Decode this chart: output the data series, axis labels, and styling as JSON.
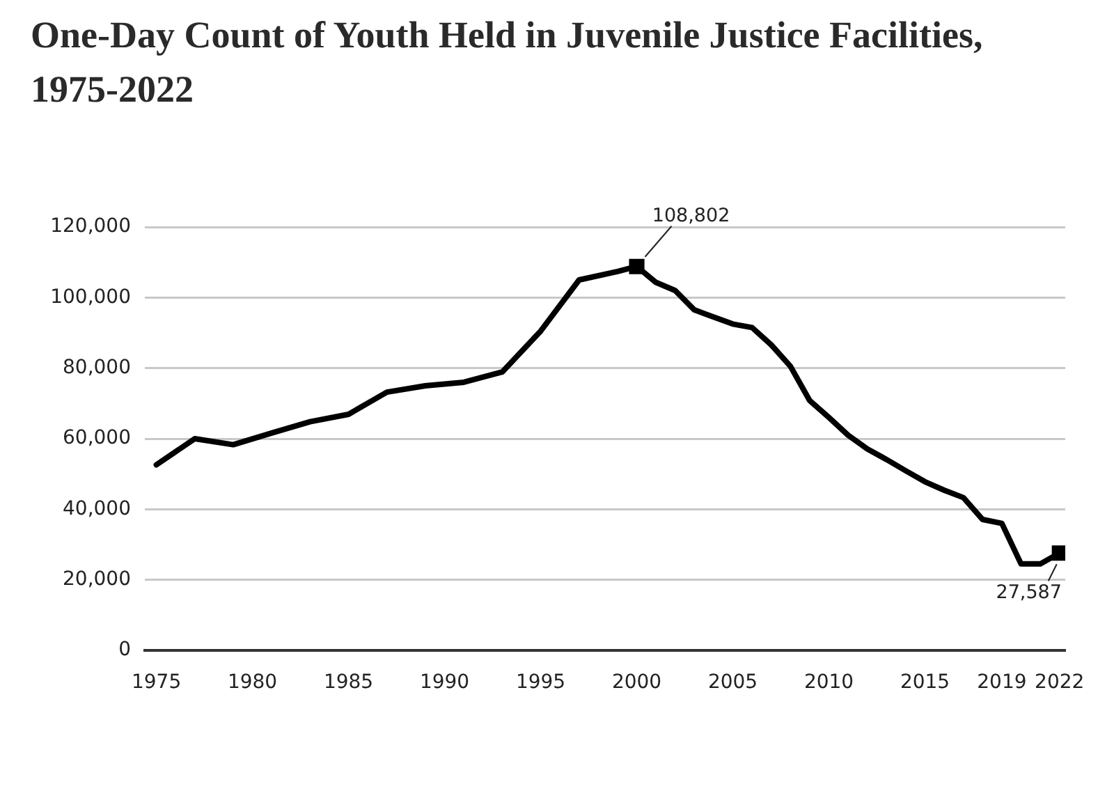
{
  "chart_data": {
    "type": "line",
    "title": "One-Day Count of Youth Held in Juvenile Justice Facilities, 1975-2022",
    "x": [
      1975,
      1977,
      1979,
      1981,
      1983,
      1985,
      1987,
      1989,
      1991,
      1993,
      1995,
      1997,
      1999,
      2000,
      2001,
      2002,
      2003,
      2004,
      2005,
      2006,
      2007,
      2008,
      2009,
      2010,
      2011,
      2012,
      2013,
      2014,
      2015,
      2016,
      2017,
      2018,
      2019,
      2020,
      2021,
      2022
    ],
    "series": [
      {
        "color": "#000000",
        "values": [
          52600,
          60000,
          58300,
          61600,
          64800,
          66900,
          73200,
          75000,
          76000,
          78900,
          90500,
          105000,
          107400,
          108802,
          104300,
          102000,
          96500,
          94500,
          92500,
          91500,
          86600,
          80500,
          70800,
          66000,
          61000,
          57100,
          54100,
          50900,
          47800,
          45400,
          43300,
          37100,
          36000,
          24500,
          24500,
          27587
        ],
        "value_labels": [
          null,
          null,
          null,
          null,
          null,
          null,
          null,
          null,
          null,
          null,
          null,
          null,
          null,
          "108,802",
          null,
          null,
          null,
          null,
          null,
          null,
          null,
          null,
          null,
          null,
          null,
          null,
          null,
          null,
          null,
          null,
          null,
          null,
          null,
          null,
          null,
          "27,587"
        ]
      }
    ],
    "xlim": [
      1974.4,
      2022.3
    ],
    "xticks": [
      1975,
      1980,
      1985,
      1990,
      1995,
      2000,
      2005,
      2010,
      2015,
      2019,
      2022
    ],
    "ylim": [
      0,
      120000
    ],
    "yticks": [
      0,
      {
        "value": 20000,
        "label": "20,000"
      },
      {
        "value": 40000,
        "label": "40,000"
      },
      {
        "value": 60000,
        "label": "60,000"
      },
      {
        "value": 80000,
        "label": "80,000"
      },
      {
        "value": 100000,
        "label": "100,000"
      },
      {
        "value": 120000,
        "label": "120,000"
      }
    ],
    "grid": "y",
    "legend": false,
    "line_style": "solid"
  }
}
